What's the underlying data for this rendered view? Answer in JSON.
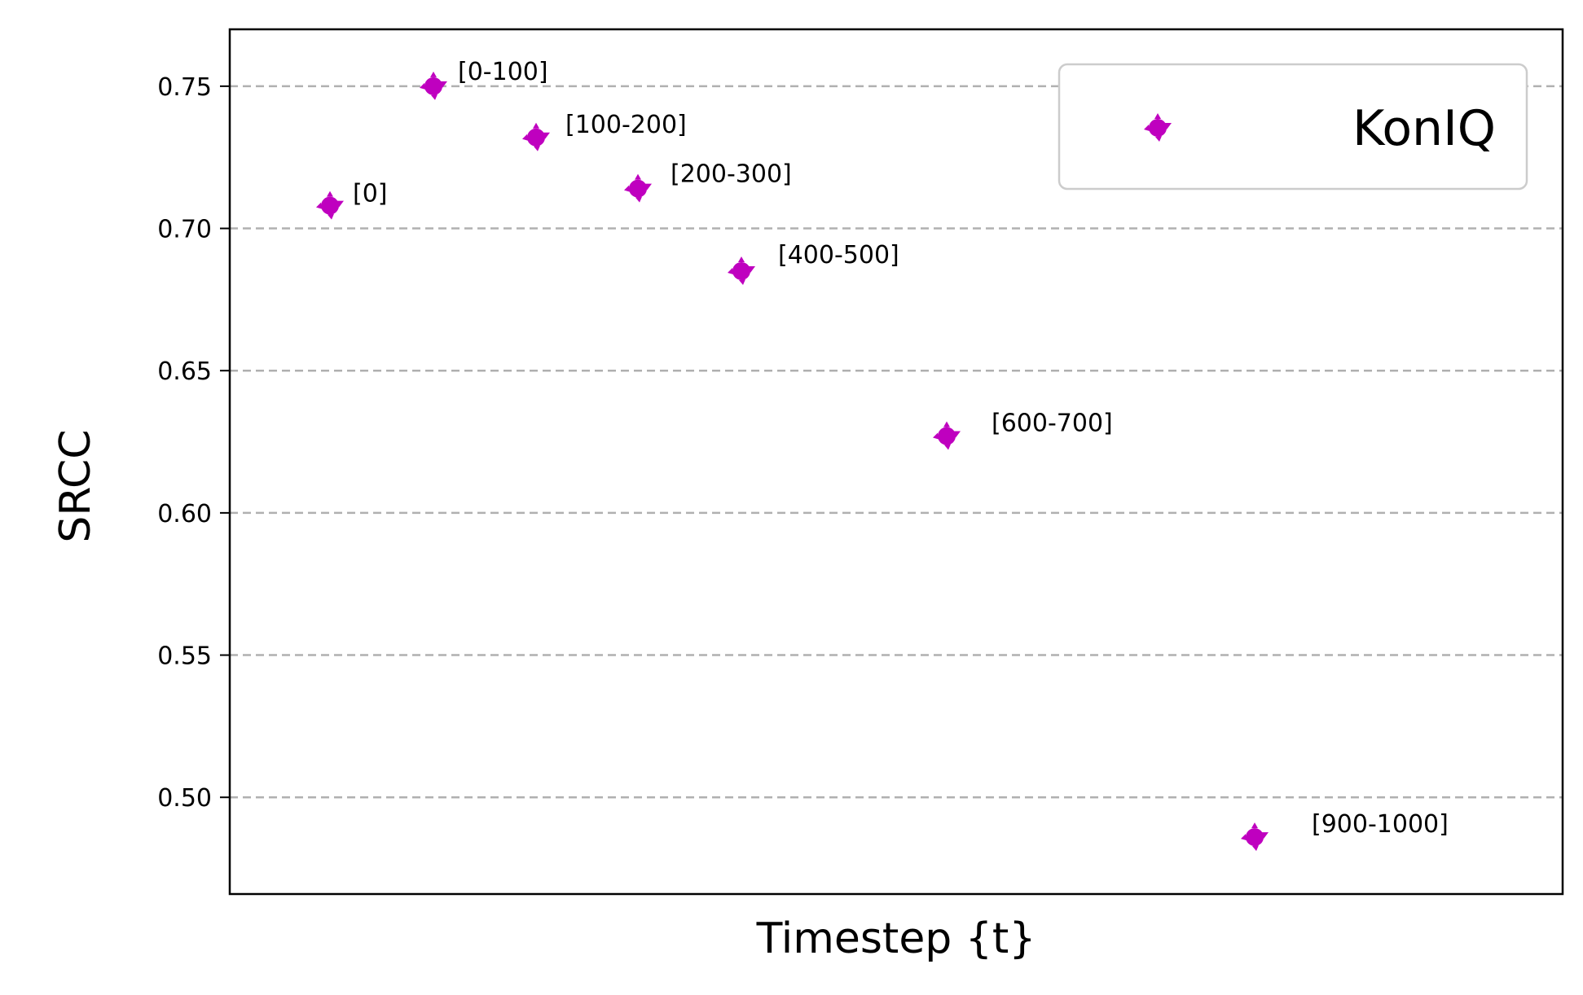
{
  "chart_data": {
    "type": "scatter",
    "xlabel": "Timestep {t}",
    "ylabel": "SRCC",
    "ylim": [
      0.466,
      0.77
    ],
    "yticks": [
      0.5,
      0.55,
      0.6,
      0.65,
      0.7,
      0.75
    ],
    "ytick_labels": [
      "0.50",
      "0.55",
      "0.60",
      "0.65",
      "0.70",
      "0.75"
    ],
    "x_ticks_shown": false,
    "grid": "horizontal dashed",
    "legend_position": "top-right",
    "series": [
      {
        "name": "KonIQ",
        "color": "#bf00bf",
        "marker": "filled circle with triangular spikes",
        "points": [
          {
            "label": "[0]",
            "y": 0.708
          },
          {
            "label": "[0-100]",
            "y": 0.75
          },
          {
            "label": "[100-200]",
            "y": 0.732
          },
          {
            "label": "[200-300]",
            "y": 0.714
          },
          {
            "label": "[400-500]",
            "y": 0.685
          },
          {
            "label": "[600-700]",
            "y": 0.627
          },
          {
            "label": "[900-1000]",
            "y": 0.486
          }
        ]
      }
    ]
  }
}
